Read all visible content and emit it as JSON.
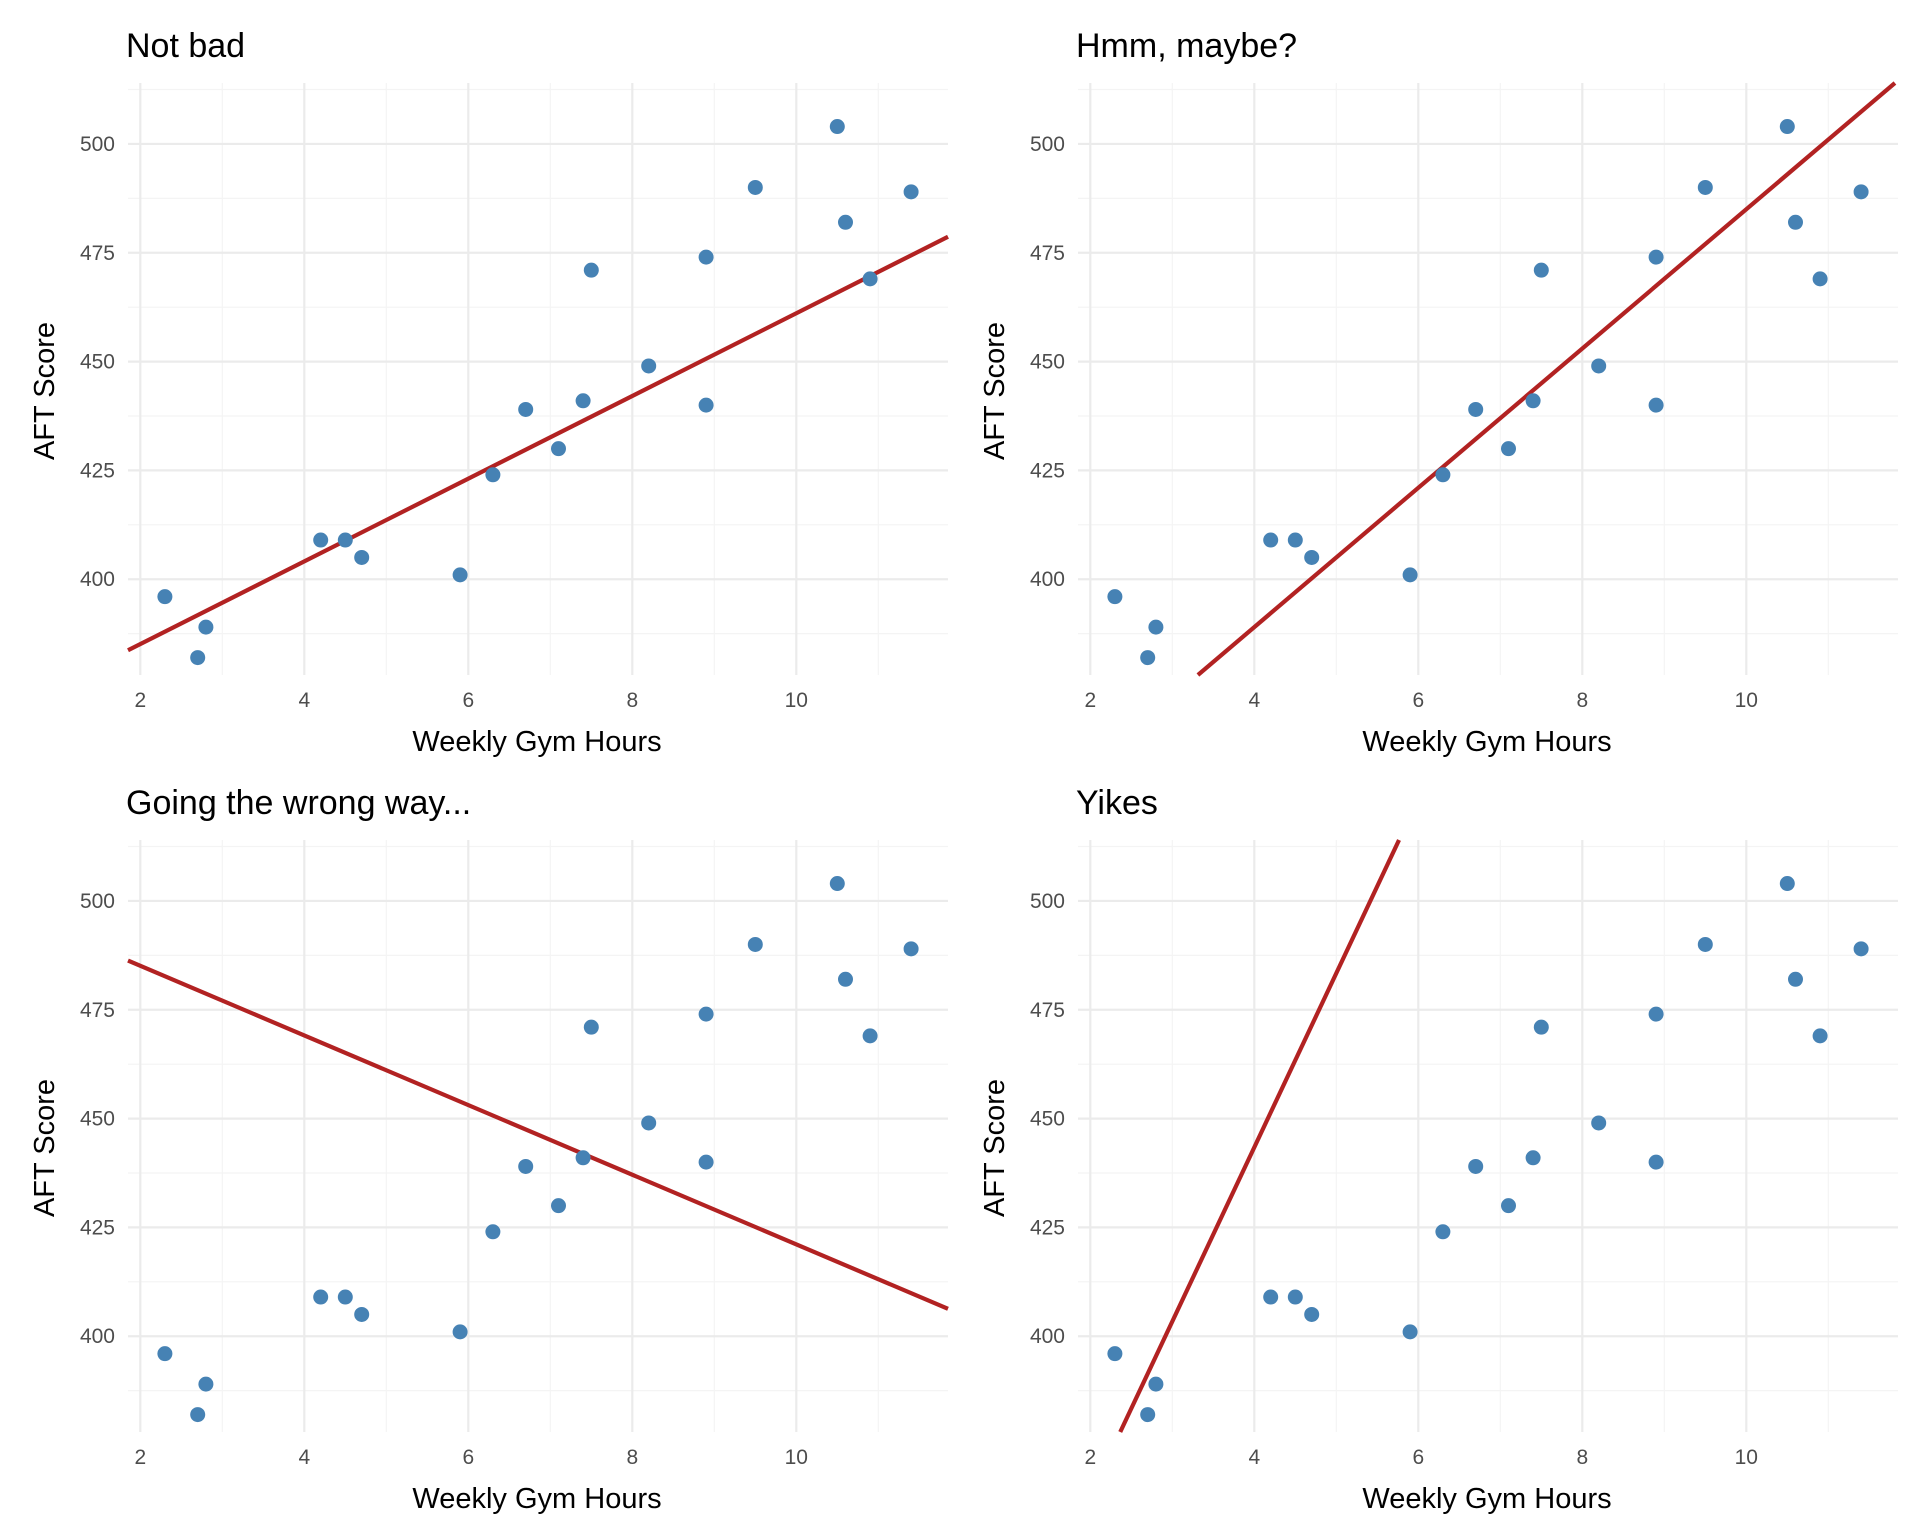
{
  "figure": {
    "point_color": "#4682b4",
    "line_color": "#b22222",
    "points": {
      "x": [
        2.3,
        2.7,
        2.8,
        4.2,
        4.5,
        4.7,
        5.9,
        6.3,
        6.7,
        7.1,
        7.4,
        7.5,
        8.2,
        8.9,
        8.9,
        9.5,
        10.5,
        10.6,
        10.9,
        11.4
      ],
      "y": [
        396,
        382,
        389,
        409,
        409,
        405,
        401,
        424,
        439,
        430,
        441,
        471,
        449,
        440,
        474,
        490,
        504,
        482,
        469,
        489
      ]
    }
  },
  "chart_data": [
    {
      "type": "scatter",
      "title": "Not bad",
      "xlabel": "Weekly Gym Hours",
      "ylabel": "AFT Score",
      "xlim": [
        1.85,
        11.85
      ],
      "ylim": [
        378,
        514
      ],
      "x_ticks": [
        2,
        4,
        6,
        8,
        10
      ],
      "y_ticks": [
        400,
        425,
        450,
        475,
        500
      ],
      "x_tick_labels": [
        "2",
        "4",
        "6",
        "8",
        "10"
      ],
      "y_tick_labels": [
        "400",
        "425",
        "450",
        "475",
        "500"
      ],
      "line": {
        "intercept": 366.1,
        "slope": 9.5
      }
    },
    {
      "type": "scatter",
      "title": "Hmm, maybe?",
      "xlabel": "Weekly Gym Hours",
      "ylabel": "AFT Score",
      "xlim": [
        1.85,
        11.85
      ],
      "ylim": [
        378,
        514
      ],
      "x_ticks": [
        2,
        4,
        6,
        8,
        10
      ],
      "y_ticks": [
        400,
        425,
        450,
        475,
        500
      ],
      "x_tick_labels": [
        "2",
        "4",
        "6",
        "8",
        "10"
      ],
      "y_tick_labels": [
        "400",
        "425",
        "450",
        "475",
        "500"
      ],
      "line": {
        "intercept": 325.0,
        "slope": 16.0
      }
    },
    {
      "type": "scatter",
      "title": "Going the wrong way...",
      "xlabel": "Weekly Gym Hours",
      "ylabel": "AFT Score",
      "xlim": [
        1.85,
        11.85
      ],
      "ylim": [
        378,
        514
      ],
      "x_ticks": [
        2,
        4,
        6,
        8,
        10
      ],
      "y_ticks": [
        400,
        425,
        450,
        475,
        500
      ],
      "x_tick_labels": [
        "2",
        "4",
        "6",
        "8",
        "10"
      ],
      "y_tick_labels": [
        "400",
        "425",
        "450",
        "475",
        "500"
      ],
      "line": {
        "intercept": 501.1,
        "slope": -8.0
      }
    },
    {
      "type": "scatter",
      "title": "Yikes",
      "xlabel": "Weekly Gym Hours",
      "ylabel": "AFT Score",
      "xlim": [
        1.85,
        11.85
      ],
      "ylim": [
        378,
        514
      ],
      "x_ticks": [
        2,
        4,
        6,
        8,
        10
      ],
      "y_ticks": [
        400,
        425,
        450,
        475,
        500
      ],
      "x_tick_labels": [
        "2",
        "4",
        "6",
        "8",
        "10"
      ],
      "y_tick_labels": [
        "400",
        "425",
        "450",
        "475",
        "500"
      ],
      "line": {
        "intercept": 283.4,
        "slope": 40.0
      }
    }
  ]
}
